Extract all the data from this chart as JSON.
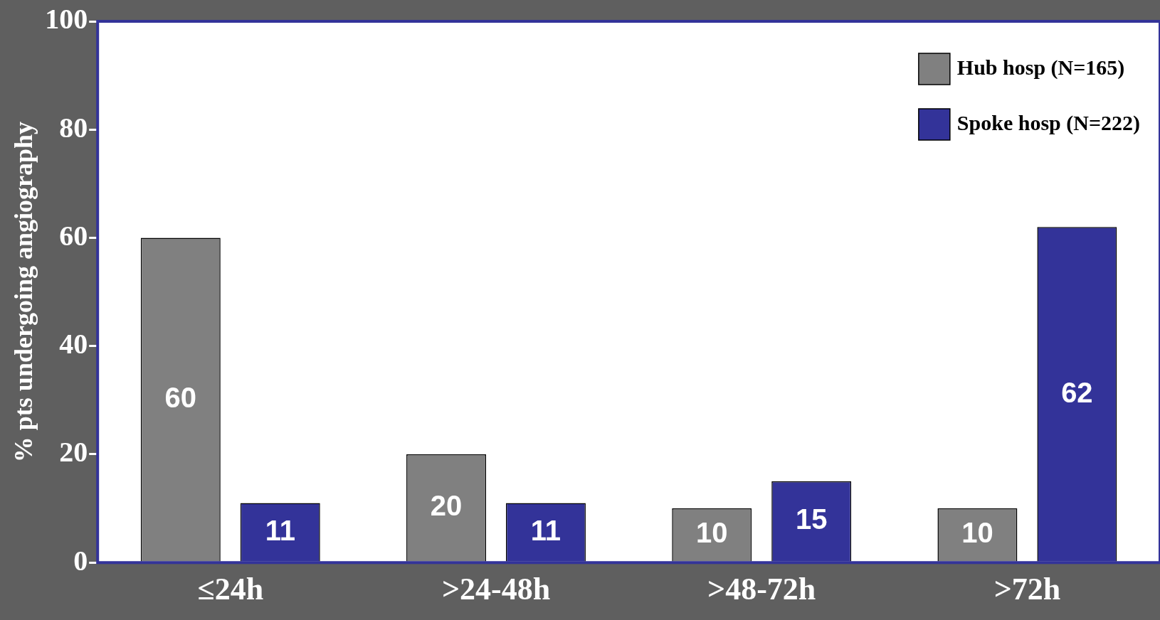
{
  "chart_data": {
    "type": "bar",
    "ylabel": "% pts undergoing angiography",
    "categories": [
      "≤24h",
      ">24-48h",
      ">48-72h",
      ">72h"
    ],
    "series": [
      {
        "name": "Hub hosp (N=165)",
        "color": "#808080",
        "values": [
          60,
          20,
          10,
          10
        ]
      },
      {
        "name": "Spoke hosp (N=222)",
        "color": "#333399",
        "values": [
          11,
          11,
          15,
          62
        ]
      }
    ],
    "ylim": [
      0,
      100
    ],
    "yticks": [
      0,
      20,
      40,
      60,
      80,
      100
    ],
    "grid": false,
    "legend": "top right",
    "data_labels": true
  }
}
